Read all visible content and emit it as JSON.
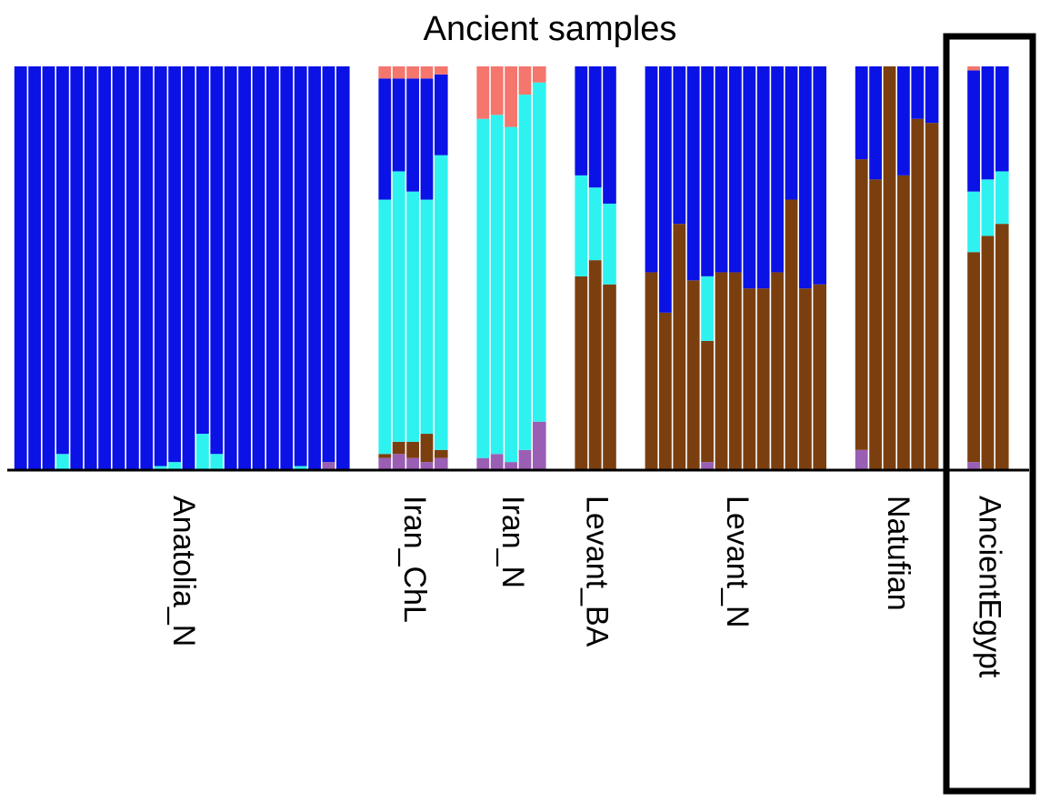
{
  "chart_data": {
    "type": "stacked_bar",
    "title": "Ancient samples",
    "ylim": [
      0,
      1
    ],
    "groups": [
      {
        "label": "Anatolia_N",
        "size": 24
      },
      {
        "label": "Iran_ChL",
        "size": 5
      },
      {
        "label": "Iran_N",
        "size": 5
      },
      {
        "label": "Levant_BA",
        "size": 3
      },
      {
        "label": "Levant_N",
        "size": 13
      },
      {
        "label": "Natufian",
        "size": 6
      },
      {
        "label": "AncientEgypt",
        "size": 3
      }
    ],
    "series": [
      {
        "color": "#9a5fb4",
        "values": [
          0,
          0,
          0,
          0,
          0,
          0,
          0,
          0,
          0,
          0,
          0,
          0,
          0,
          0,
          0,
          0,
          0,
          0,
          0,
          0,
          0,
          0,
          0.02,
          0,
          0.03,
          0.04,
          0.03,
          0.02,
          0.03,
          0.03,
          0.04,
          0.02,
          0.05,
          0.12,
          0,
          0,
          0,
          0,
          0,
          0,
          0,
          0.02,
          0,
          0,
          0,
          0,
          0,
          0,
          0,
          0,
          0.05,
          0,
          0,
          0,
          0,
          0,
          0.02,
          0,
          0
        ]
      },
      {
        "color": "#7b3f0f",
        "values": [
          0,
          0,
          0,
          0,
          0,
          0,
          0,
          0,
          0,
          0,
          0,
          0,
          0,
          0,
          0,
          0,
          0,
          0,
          0,
          0,
          0,
          0,
          0,
          0,
          0.01,
          0.03,
          0.04,
          0.07,
          0.02,
          0,
          0,
          0,
          0,
          0,
          0.48,
          0.52,
          0.46,
          0.49,
          0.39,
          0.61,
          0.47,
          0.3,
          0.49,
          0.49,
          0.45,
          0.45,
          0.49,
          0.67,
          0.45,
          0.46,
          0.72,
          0.72,
          1,
          0.73,
          0.87,
          0.86,
          0.52,
          0.58,
          0.61
        ]
      },
      {
        "color": "#2ef2f0",
        "values": [
          0,
          0,
          0,
          0.04,
          0,
          0,
          0,
          0,
          0,
          0,
          0.01,
          0.02,
          0,
          0.09,
          0.04,
          0,
          0,
          0,
          0,
          0,
          0.01,
          0,
          0,
          0,
          0.63,
          0.67,
          0.62,
          0.58,
          0.73,
          0.84,
          0.84,
          0.83,
          0.88,
          0.84,
          0.25,
          0.18,
          0.2,
          0,
          0,
          0,
          0,
          0.16,
          0,
          0,
          0,
          0,
          0,
          0,
          0,
          0,
          0,
          0,
          0,
          0,
          0,
          0,
          0.15,
          0.14,
          0.13
        ]
      },
      {
        "color": "#0a12e6",
        "values": [
          1,
          1,
          1,
          0.96,
          1,
          1,
          1,
          1,
          1,
          1,
          0.99,
          0.98,
          1,
          0.91,
          0.96,
          1,
          1,
          1,
          1,
          1,
          0.99,
          1,
          0.98,
          1,
          0.3,
          0.23,
          0.28,
          0.3,
          0.2,
          0,
          0,
          0,
          0,
          0,
          0.27,
          0.3,
          0.34,
          0.51,
          0.61,
          0.39,
          0.53,
          0.52,
          0.51,
          0.51,
          0.55,
          0.55,
          0.51,
          0.33,
          0.55,
          0.54,
          0.23,
          0.28,
          0,
          0.27,
          0.13,
          0.14,
          0.3,
          0.28,
          0.26
        ]
      },
      {
        "color": "#f4766d",
        "values": [
          0,
          0,
          0,
          0,
          0,
          0,
          0,
          0,
          0,
          0,
          0,
          0,
          0,
          0,
          0,
          0,
          0,
          0,
          0,
          0,
          0,
          0,
          0,
          0,
          0.03,
          0.03,
          0.03,
          0.03,
          0.02,
          0.13,
          0.12,
          0.15,
          0.07,
          0.04,
          0,
          0,
          0,
          0,
          0,
          0,
          0,
          0,
          0,
          0,
          0,
          0,
          0,
          0,
          0,
          0,
          0,
          0,
          0,
          0,
          0,
          0,
          0.01,
          0,
          0
        ]
      }
    ]
  }
}
